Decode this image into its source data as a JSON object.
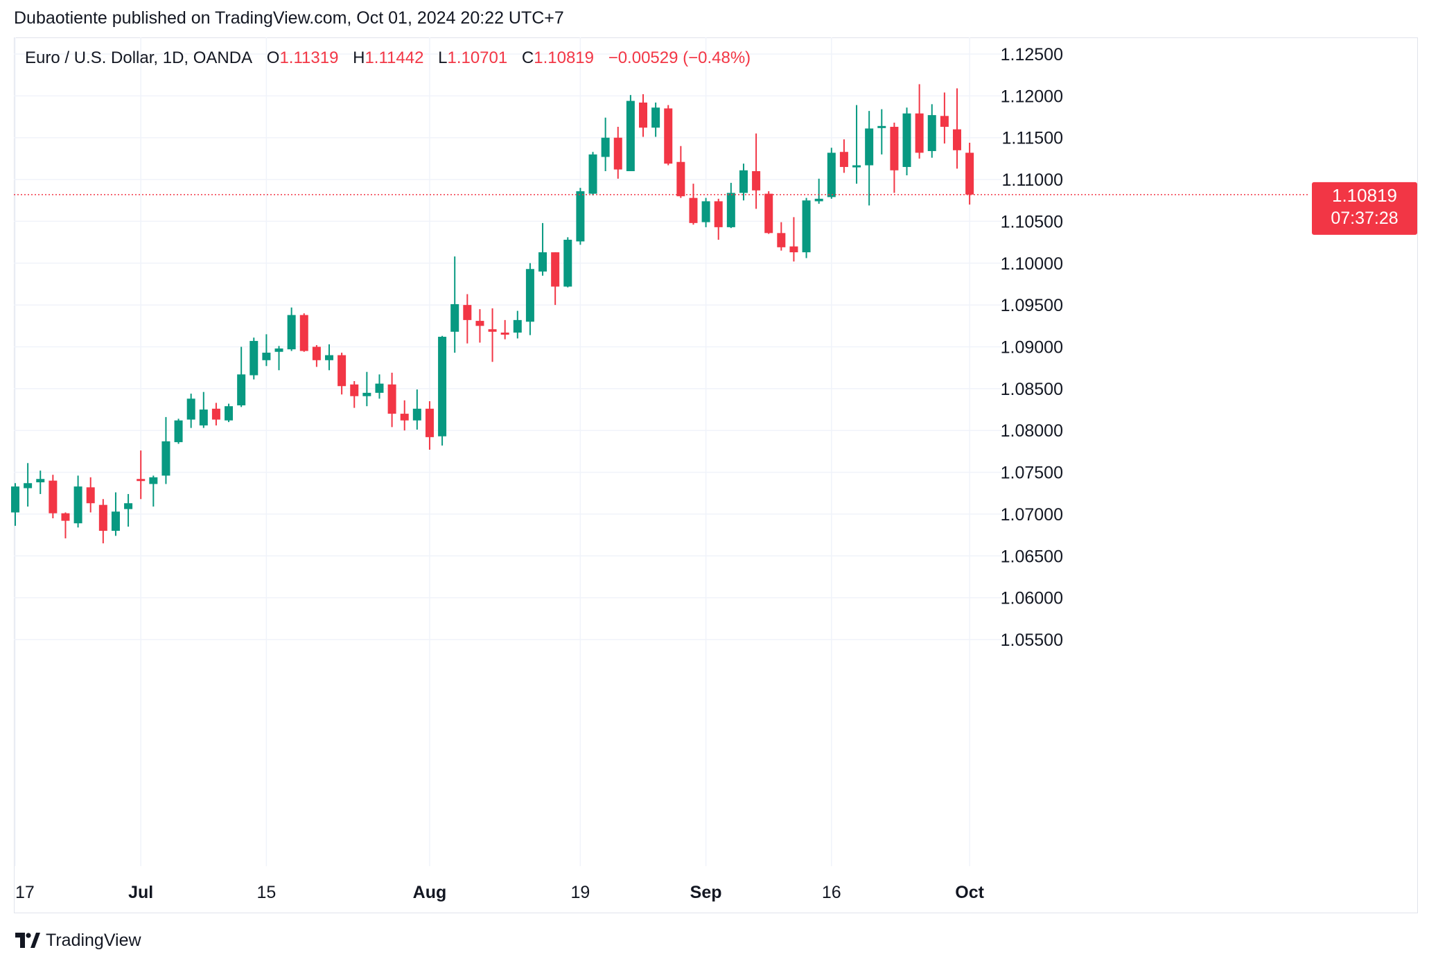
{
  "header": {
    "publisher": "Dubaotiente published on TradingView.com, Oct 01, 2024 20:22 UTC+7"
  },
  "legend": {
    "symbol": "Euro / U.S. Dollar, 1D, OANDA",
    "o_label": "O",
    "o_value": "1.11319",
    "h_label": "H",
    "h_value": "1.11442",
    "l_label": "L",
    "l_value": "1.10701",
    "c_label": "C",
    "c_value": "1.10819",
    "change": "−0.00529 (−0.48%)"
  },
  "price_tag": {
    "price": "1.10819",
    "countdown": "07:37:28"
  },
  "footer": {
    "brand": "TradingView"
  },
  "colors": {
    "up": "#089981",
    "down": "#f23645",
    "grid": "#f0f3fa",
    "text": "#131722"
  },
  "chart_data": {
    "type": "candlestick",
    "ylim": [
      1.0525,
      1.1275
    ],
    "y_ticks": [
      "1.05500",
      "1.06000",
      "1.06500",
      "1.07000",
      "1.07500",
      "1.08000",
      "1.08500",
      "1.09000",
      "1.09500",
      "1.10000",
      "1.10500",
      "1.11000",
      "1.11500",
      "1.12000",
      "1.12500"
    ],
    "x_labels": [
      {
        "text": "17",
        "index": 0
      },
      {
        "text": "Jul",
        "index": 10
      },
      {
        "text": "15",
        "index": 20
      },
      {
        "text": "Aug",
        "index": 33
      },
      {
        "text": "19",
        "index": 45
      },
      {
        "text": "Sep",
        "index": 55
      },
      {
        "text": "16",
        "index": 65
      },
      {
        "text": "Oct",
        "index": 76
      }
    ],
    "last_price": 1.10819,
    "candles": [
      {
        "o": 1.0702,
        "h": 1.0737,
        "l": 1.0686,
        "c": 1.0733
      },
      {
        "o": 1.0731,
        "h": 1.0761,
        "l": 1.0709,
        "c": 1.0737
      },
      {
        "o": 1.0738,
        "h": 1.0752,
        "l": 1.0724,
        "c": 1.0742
      },
      {
        "o": 1.074,
        "h": 1.0747,
        "l": 1.0695,
        "c": 1.0701
      },
      {
        "o": 1.0701,
        "h": 1.0702,
        "l": 1.0671,
        "c": 1.0692
      },
      {
        "o": 1.0689,
        "h": 1.0746,
        "l": 1.0684,
        "c": 1.0733
      },
      {
        "o": 1.0732,
        "h": 1.0744,
        "l": 1.0702,
        "c": 1.0713
      },
      {
        "o": 1.0711,
        "h": 1.0718,
        "l": 1.0665,
        "c": 1.068
      },
      {
        "o": 1.068,
        "h": 1.0726,
        "l": 1.0674,
        "c": 1.0703
      },
      {
        "o": 1.0706,
        "h": 1.0724,
        "l": 1.0685,
        "c": 1.0713
      },
      {
        "o": 1.0742,
        "h": 1.0776,
        "l": 1.0718,
        "c": 1.074
      },
      {
        "o": 1.0736,
        "h": 1.0746,
        "l": 1.0709,
        "c": 1.0744
      },
      {
        "o": 1.0746,
        "h": 1.0816,
        "l": 1.0736,
        "c": 1.0787
      },
      {
        "o": 1.0786,
        "h": 1.0814,
        "l": 1.0784,
        "c": 1.0812
      },
      {
        "o": 1.0813,
        "h": 1.0844,
        "l": 1.0803,
        "c": 1.0838
      },
      {
        "o": 1.0806,
        "h": 1.0846,
        "l": 1.0803,
        "c": 1.0825
      },
      {
        "o": 1.0826,
        "h": 1.0833,
        "l": 1.0806,
        "c": 1.0813
      },
      {
        "o": 1.0812,
        "h": 1.0832,
        "l": 1.081,
        "c": 1.0829
      },
      {
        "o": 1.083,
        "h": 1.09,
        "l": 1.0828,
        "c": 1.0867
      },
      {
        "o": 1.0866,
        "h": 1.0911,
        "l": 1.0861,
        "c": 1.0907
      },
      {
        "o": 1.0884,
        "h": 1.0915,
        "l": 1.0877,
        "c": 1.0893
      },
      {
        "o": 1.0894,
        "h": 1.0901,
        "l": 1.0872,
        "c": 1.0898
      },
      {
        "o": 1.0897,
        "h": 1.0947,
        "l": 1.0895,
        "c": 1.0938
      },
      {
        "o": 1.0938,
        "h": 1.094,
        "l": 1.0894,
        "c": 1.0895
      },
      {
        "o": 1.09,
        "h": 1.0902,
        "l": 1.0876,
        "c": 1.0884
      },
      {
        "o": 1.0884,
        "h": 1.0903,
        "l": 1.0872,
        "c": 1.089
      },
      {
        "o": 1.089,
        "h": 1.0893,
        "l": 1.0843,
        "c": 1.0853
      },
      {
        "o": 1.0855,
        "h": 1.0859,
        "l": 1.0827,
        "c": 1.0841
      },
      {
        "o": 1.0841,
        "h": 1.087,
        "l": 1.0829,
        "c": 1.0845
      },
      {
        "o": 1.0845,
        "h": 1.0867,
        "l": 1.0838,
        "c": 1.0856
      },
      {
        "o": 1.0855,
        "h": 1.0869,
        "l": 1.0804,
        "c": 1.082
      },
      {
        "o": 1.082,
        "h": 1.0836,
        "l": 1.08,
        "c": 1.0812
      },
      {
        "o": 1.0812,
        "h": 1.0849,
        "l": 1.0801,
        "c": 1.0826
      },
      {
        "o": 1.0826,
        "h": 1.0835,
        "l": 1.0777,
        "c": 1.0792
      },
      {
        "o": 1.0793,
        "h": 1.0913,
        "l": 1.0782,
        "c": 1.0912
      },
      {
        "o": 1.0918,
        "h": 1.1008,
        "l": 1.0893,
        "c": 1.0951
      },
      {
        "o": 1.095,
        "h": 1.0963,
        "l": 1.0904,
        "c": 1.0932
      },
      {
        "o": 1.0931,
        "h": 1.0945,
        "l": 1.0905,
        "c": 1.0925
      },
      {
        "o": 1.0921,
        "h": 1.0946,
        "l": 1.0882,
        "c": 1.0918
      },
      {
        "o": 1.0917,
        "h": 1.0932,
        "l": 1.0909,
        "c": 1.0916
      },
      {
        "o": 1.0917,
        "h": 1.0943,
        "l": 1.091,
        "c": 1.0932
      },
      {
        "o": 1.093,
        "h": 1.1,
        "l": 1.0914,
        "c": 1.0993
      },
      {
        "o": 1.099,
        "h": 1.1048,
        "l": 1.0985,
        "c": 1.1013
      },
      {
        "o": 1.1013,
        "h": 1.1013,
        "l": 1.095,
        "c": 1.0972
      },
      {
        "o": 1.0972,
        "h": 1.1031,
        "l": 1.0971,
        "c": 1.1028
      },
      {
        "o": 1.1026,
        "h": 1.109,
        "l": 1.1022,
        "c": 1.1086
      },
      {
        "o": 1.1083,
        "h": 1.1133,
        "l": 1.1081,
        "c": 1.113
      },
      {
        "o": 1.1127,
        "h": 1.1174,
        "l": 1.111,
        "c": 1.115
      },
      {
        "o": 1.115,
        "h": 1.1163,
        "l": 1.1101,
        "c": 1.1112
      },
      {
        "o": 1.111,
        "h": 1.1201,
        "l": 1.111,
        "c": 1.1194
      },
      {
        "o": 1.1192,
        "h": 1.1202,
        "l": 1.1151,
        "c": 1.1162
      },
      {
        "o": 1.1162,
        "h": 1.1192,
        "l": 1.1151,
        "c": 1.1186
      },
      {
        "o": 1.1185,
        "h": 1.1189,
        "l": 1.1117,
        "c": 1.1119
      },
      {
        "o": 1.1121,
        "h": 1.114,
        "l": 1.1078,
        "c": 1.108
      },
      {
        "o": 1.1078,
        "h": 1.1095,
        "l": 1.1046,
        "c": 1.1048
      },
      {
        "o": 1.1049,
        "h": 1.1078,
        "l": 1.1043,
        "c": 1.1074
      },
      {
        "o": 1.1074,
        "h": 1.1077,
        "l": 1.1028,
        "c": 1.1043
      },
      {
        "o": 1.1043,
        "h": 1.1096,
        "l": 1.1042,
        "c": 1.1084
      },
      {
        "o": 1.1084,
        "h": 1.1119,
        "l": 1.1075,
        "c": 1.1111
      },
      {
        "o": 1.111,
        "h": 1.1155,
        "l": 1.1065,
        "c": 1.1087
      },
      {
        "o": 1.1083,
        "h": 1.1086,
        "l": 1.1035,
        "c": 1.1036
      },
      {
        "o": 1.1036,
        "h": 1.1049,
        "l": 1.1015,
        "c": 1.1019
      },
      {
        "o": 1.102,
        "h": 1.1055,
        "l": 1.1002,
        "c": 1.1013
      },
      {
        "o": 1.1013,
        "h": 1.1078,
        "l": 1.1006,
        "c": 1.1075
      },
      {
        "o": 1.1074,
        "h": 1.1101,
        "l": 1.1071,
        "c": 1.1077
      },
      {
        "o": 1.1079,
        "h": 1.1138,
        "l": 1.1077,
        "c": 1.1132
      },
      {
        "o": 1.1133,
        "h": 1.1148,
        "l": 1.1108,
        "c": 1.1115
      },
      {
        "o": 1.1115,
        "h": 1.1189,
        "l": 1.1095,
        "c": 1.1117
      },
      {
        "o": 1.1117,
        "h": 1.1182,
        "l": 1.1069,
        "c": 1.1161
      },
      {
        "o": 1.1164,
        "h": 1.1184,
        "l": 1.113,
        "c": 1.1164
      },
      {
        "o": 1.1163,
        "h": 1.1168,
        "l": 1.1084,
        "c": 1.1111
      },
      {
        "o": 1.1115,
        "h": 1.1186,
        "l": 1.1105,
        "c": 1.1179
      },
      {
        "o": 1.1179,
        "h": 1.1214,
        "l": 1.1125,
        "c": 1.1132
      },
      {
        "o": 1.1134,
        "h": 1.119,
        "l": 1.1126,
        "c": 1.1177
      },
      {
        "o": 1.1176,
        "h": 1.1204,
        "l": 1.1143,
        "c": 1.1163
      },
      {
        "o": 1.116,
        "h": 1.1209,
        "l": 1.1113,
        "c": 1.1135
      },
      {
        "o": 1.1132,
        "h": 1.1144,
        "l": 1.107,
        "c": 1.1082
      }
    ]
  }
}
